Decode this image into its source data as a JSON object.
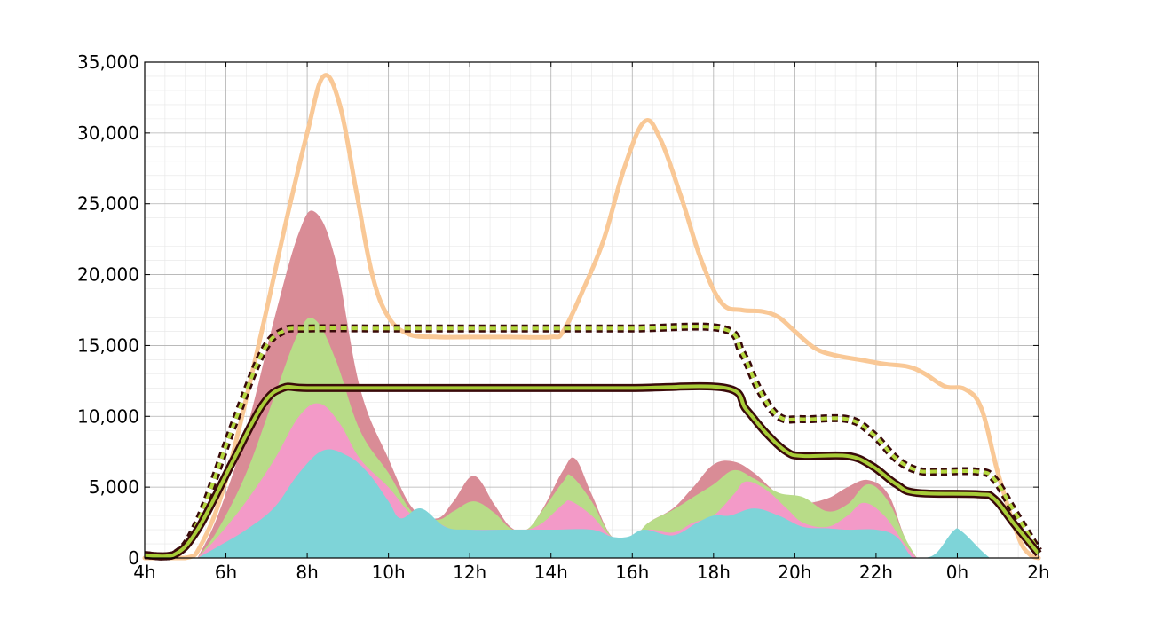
{
  "chart_data": {
    "type": "area",
    "title": "",
    "xlabel": "",
    "ylabel": "",
    "xlim": [
      4,
      26
    ],
    "ylim": [
      0,
      35000
    ],
    "x_ticks": [
      {
        "value": 4,
        "label": "4h"
      },
      {
        "value": 6,
        "label": "6h"
      },
      {
        "value": 8,
        "label": "8h"
      },
      {
        "value": 10,
        "label": "10h"
      },
      {
        "value": 12,
        "label": "12h"
      },
      {
        "value": 14,
        "label": "14h"
      },
      {
        "value": 16,
        "label": "16h"
      },
      {
        "value": 18,
        "label": "18h"
      },
      {
        "value": 20,
        "label": "20h"
      },
      {
        "value": 22,
        "label": "22h"
      },
      {
        "value": 24,
        "label": "0h"
      },
      {
        "value": 26,
        "label": "2h"
      }
    ],
    "y_ticks": [
      {
        "value": 0,
        "label": "0"
      },
      {
        "value": 5000,
        "label": "5,000"
      },
      {
        "value": 10000,
        "label": "10,000"
      },
      {
        "value": 15000,
        "label": "15,000"
      },
      {
        "value": 20000,
        "label": "20,000"
      },
      {
        "value": 25000,
        "label": "25,000"
      },
      {
        "value": 30000,
        "label": "30,000"
      },
      {
        "value": 35000,
        "label": "35,000"
      }
    ],
    "grid": true,
    "legend": "none",
    "stacked_areas": [
      {
        "color": "#d98c96",
        "points": [
          [
            5.3,
            0
          ],
          [
            5.8,
            3000
          ],
          [
            6.5,
            9000
          ],
          [
            7.2,
            17000
          ],
          [
            7.8,
            23000
          ],
          [
            8.2,
            24400
          ],
          [
            8.7,
            21000
          ],
          [
            9.3,
            12000
          ],
          [
            10,
            7000
          ],
          [
            10.6,
            3500
          ],
          [
            11.2,
            2800
          ],
          [
            11.6,
            4000
          ],
          [
            12.1,
            5800
          ],
          [
            12.6,
            3800
          ],
          [
            13.0,
            2200
          ],
          [
            13.4,
            2000
          ],
          [
            13.8,
            3500
          ],
          [
            14.3,
            6200
          ],
          [
            14.6,
            7000
          ],
          [
            15.0,
            4500
          ],
          [
            15.5,
            1500
          ],
          [
            16.0,
            1400
          ],
          [
            16.4,
            2500
          ],
          [
            17.0,
            3500
          ],
          [
            17.5,
            5000
          ],
          [
            18.0,
            6600
          ],
          [
            18.5,
            6800
          ],
          [
            19.0,
            6000
          ],
          [
            19.6,
            4500
          ],
          [
            20.2,
            3900
          ],
          [
            20.8,
            4200
          ],
          [
            21.3,
            5000
          ],
          [
            21.8,
            5500
          ],
          [
            22.3,
            4500
          ],
          [
            22.7,
            1500
          ],
          [
            23.0,
            0
          ]
        ]
      },
      {
        "color": "#b8dc88",
        "points": [
          [
            5.3,
            0
          ],
          [
            5.8,
            2000
          ],
          [
            6.5,
            6000
          ],
          [
            7.2,
            11500
          ],
          [
            7.8,
            16000
          ],
          [
            8.2,
            16800
          ],
          [
            8.7,
            14000
          ],
          [
            9.3,
            9000
          ],
          [
            10,
            6000
          ],
          [
            10.6,
            3200
          ],
          [
            11.2,
            2700
          ],
          [
            11.6,
            3300
          ],
          [
            12.1,
            4000
          ],
          [
            12.6,
            3200
          ],
          [
            13.0,
            2100
          ],
          [
            13.4,
            2000
          ],
          [
            13.8,
            3400
          ],
          [
            14.3,
            5400
          ],
          [
            14.5,
            5800
          ],
          [
            15.0,
            4000
          ],
          [
            15.5,
            1500
          ],
          [
            16.0,
            1400
          ],
          [
            16.4,
            2500
          ],
          [
            17.0,
            3400
          ],
          [
            17.5,
            4300
          ],
          [
            18.0,
            5200
          ],
          [
            18.5,
            6200
          ],
          [
            19.0,
            5600
          ],
          [
            19.6,
            4600
          ],
          [
            20.2,
            4300
          ],
          [
            20.8,
            3300
          ],
          [
            21.3,
            3800
          ],
          [
            21.8,
            5200
          ],
          [
            22.3,
            4000
          ],
          [
            22.7,
            1500
          ],
          [
            23.0,
            0
          ]
        ]
      },
      {
        "color": "#f39ac8",
        "points": [
          [
            5.3,
            0
          ],
          [
            5.8,
            1500
          ],
          [
            6.5,
            4000
          ],
          [
            7.2,
            7000
          ],
          [
            7.8,
            10000
          ],
          [
            8.3,
            10900
          ],
          [
            8.8,
            9500
          ],
          [
            9.3,
            7000
          ],
          [
            10,
            5000
          ],
          [
            10.6,
            3000
          ],
          [
            11.2,
            2500
          ],
          [
            11.6,
            2000
          ],
          [
            12.2,
            2000
          ],
          [
            13.0,
            2000
          ],
          [
            13.4,
            2000
          ],
          [
            13.8,
            2500
          ],
          [
            14.3,
            3800
          ],
          [
            14.5,
            4000
          ],
          [
            15.0,
            3000
          ],
          [
            15.5,
            1500
          ],
          [
            16.0,
            1400
          ],
          [
            16.4,
            2000
          ],
          [
            17.0,
            1800
          ],
          [
            17.5,
            2500
          ],
          [
            18.0,
            3000
          ],
          [
            18.5,
            4500
          ],
          [
            18.8,
            5400
          ],
          [
            19.3,
            4800
          ],
          [
            19.8,
            3500
          ],
          [
            20.2,
            2500
          ],
          [
            20.8,
            2200
          ],
          [
            21.3,
            3000
          ],
          [
            21.7,
            3900
          ],
          [
            22.2,
            3000
          ],
          [
            22.7,
            1000
          ],
          [
            23.0,
            0
          ]
        ]
      },
      {
        "color": "#7ed4d8",
        "points": [
          [
            5.3,
            0
          ],
          [
            5.8,
            800
          ],
          [
            6.5,
            2000
          ],
          [
            7.2,
            3600
          ],
          [
            7.8,
            6000
          ],
          [
            8.4,
            7600
          ],
          [
            9.0,
            7200
          ],
          [
            9.5,
            6000
          ],
          [
            10,
            4000
          ],
          [
            10.3,
            2800
          ],
          [
            10.8,
            3500
          ],
          [
            11.4,
            2200
          ],
          [
            12.0,
            2000
          ],
          [
            13.0,
            2000
          ],
          [
            14.0,
            2000
          ],
          [
            15.0,
            2000
          ],
          [
            15.5,
            1500
          ],
          [
            15.9,
            1500
          ],
          [
            16.3,
            2000
          ],
          [
            17.0,
            1600
          ],
          [
            17.6,
            2500
          ],
          [
            18.0,
            3000
          ],
          [
            18.4,
            3000
          ],
          [
            19.0,
            3500
          ],
          [
            19.6,
            3000
          ],
          [
            20.2,
            2200
          ],
          [
            20.8,
            2100
          ],
          [
            21.3,
            2000
          ],
          [
            22.0,
            2000
          ],
          [
            22.5,
            1500
          ],
          [
            22.9,
            0
          ],
          [
            23.2,
            0
          ],
          [
            23.5,
            400
          ],
          [
            23.9,
            1900
          ],
          [
            24.1,
            1900
          ],
          [
            24.6,
            500
          ],
          [
            24.8,
            0
          ]
        ]
      }
    ],
    "lines": [
      {
        "style": "thick-orange",
        "color": "#f9c896",
        "points": [
          [
            4.0,
            0
          ],
          [
            5.0,
            0
          ],
          [
            5.4,
            1000
          ],
          [
            6.0,
            5500
          ],
          [
            6.8,
            15000
          ],
          [
            7.5,
            24000
          ],
          [
            8.0,
            30000
          ],
          [
            8.4,
            34000
          ],
          [
            8.8,
            32000
          ],
          [
            9.2,
            26000
          ],
          [
            9.6,
            20000
          ],
          [
            10.0,
            17000
          ],
          [
            10.5,
            15800
          ],
          [
            11.2,
            15600
          ],
          [
            12.0,
            15600
          ],
          [
            13.0,
            15600
          ],
          [
            14.0,
            15600
          ],
          [
            14.3,
            16000
          ],
          [
            14.8,
            19000
          ],
          [
            15.3,
            22500
          ],
          [
            15.8,
            27500
          ],
          [
            16.3,
            30800
          ],
          [
            16.7,
            29500
          ],
          [
            17.2,
            25500
          ],
          [
            17.7,
            21000
          ],
          [
            18.2,
            18000
          ],
          [
            18.7,
            17500
          ],
          [
            19.2,
            17400
          ],
          [
            19.6,
            17000
          ],
          [
            20.0,
            16000
          ],
          [
            20.5,
            14800
          ],
          [
            21.0,
            14300
          ],
          [
            21.6,
            14000
          ],
          [
            22.2,
            13700
          ],
          [
            22.8,
            13500
          ],
          [
            23.2,
            13000
          ],
          [
            23.7,
            12100
          ],
          [
            24.2,
            11900
          ],
          [
            24.6,
            10500
          ],
          [
            25.0,
            6000
          ],
          [
            25.5,
            1500
          ],
          [
            25.8,
            200
          ],
          [
            26.0,
            0
          ]
        ]
      },
      {
        "style": "dashed-band",
        "color": "#b5d840",
        "points": [
          [
            4.0,
            200
          ],
          [
            4.7,
            200
          ],
          [
            5.3,
            2500
          ],
          [
            6.2,
            9500
          ],
          [
            6.9,
            14500
          ],
          [
            7.4,
            16000
          ],
          [
            8.0,
            16200
          ],
          [
            10.0,
            16200
          ],
          [
            12.0,
            16200
          ],
          [
            14.0,
            16200
          ],
          [
            16.0,
            16200
          ],
          [
            18.2,
            16200
          ],
          [
            18.7,
            14500
          ],
          [
            19.1,
            12000
          ],
          [
            19.6,
            10000
          ],
          [
            20.2,
            9800
          ],
          [
            21.3,
            9800
          ],
          [
            21.9,
            8800
          ],
          [
            22.5,
            7000
          ],
          [
            23.0,
            6200
          ],
          [
            23.5,
            6100
          ],
          [
            24.5,
            6100
          ],
          [
            24.9,
            5600
          ],
          [
            25.4,
            3300
          ],
          [
            26.0,
            500
          ]
        ]
      },
      {
        "style": "solid-band",
        "color": "#a8cc38",
        "points": [
          [
            4.0,
            200
          ],
          [
            4.7,
            200
          ],
          [
            5.3,
            2000
          ],
          [
            6.2,
            7000
          ],
          [
            6.9,
            10800
          ],
          [
            7.4,
            12000
          ],
          [
            8.0,
            12000
          ],
          [
            10.0,
            12000
          ],
          [
            12.0,
            12000
          ],
          [
            14.0,
            12000
          ],
          [
            16.0,
            12000
          ],
          [
            18.3,
            12000
          ],
          [
            18.8,
            10500
          ],
          [
            19.3,
            8800
          ],
          [
            19.8,
            7500
          ],
          [
            20.2,
            7200
          ],
          [
            21.3,
            7200
          ],
          [
            21.9,
            6500
          ],
          [
            22.5,
            5200
          ],
          [
            23.0,
            4600
          ],
          [
            24.5,
            4500
          ],
          [
            24.9,
            4200
          ],
          [
            25.4,
            2400
          ],
          [
            26.0,
            300
          ]
        ]
      }
    ]
  }
}
